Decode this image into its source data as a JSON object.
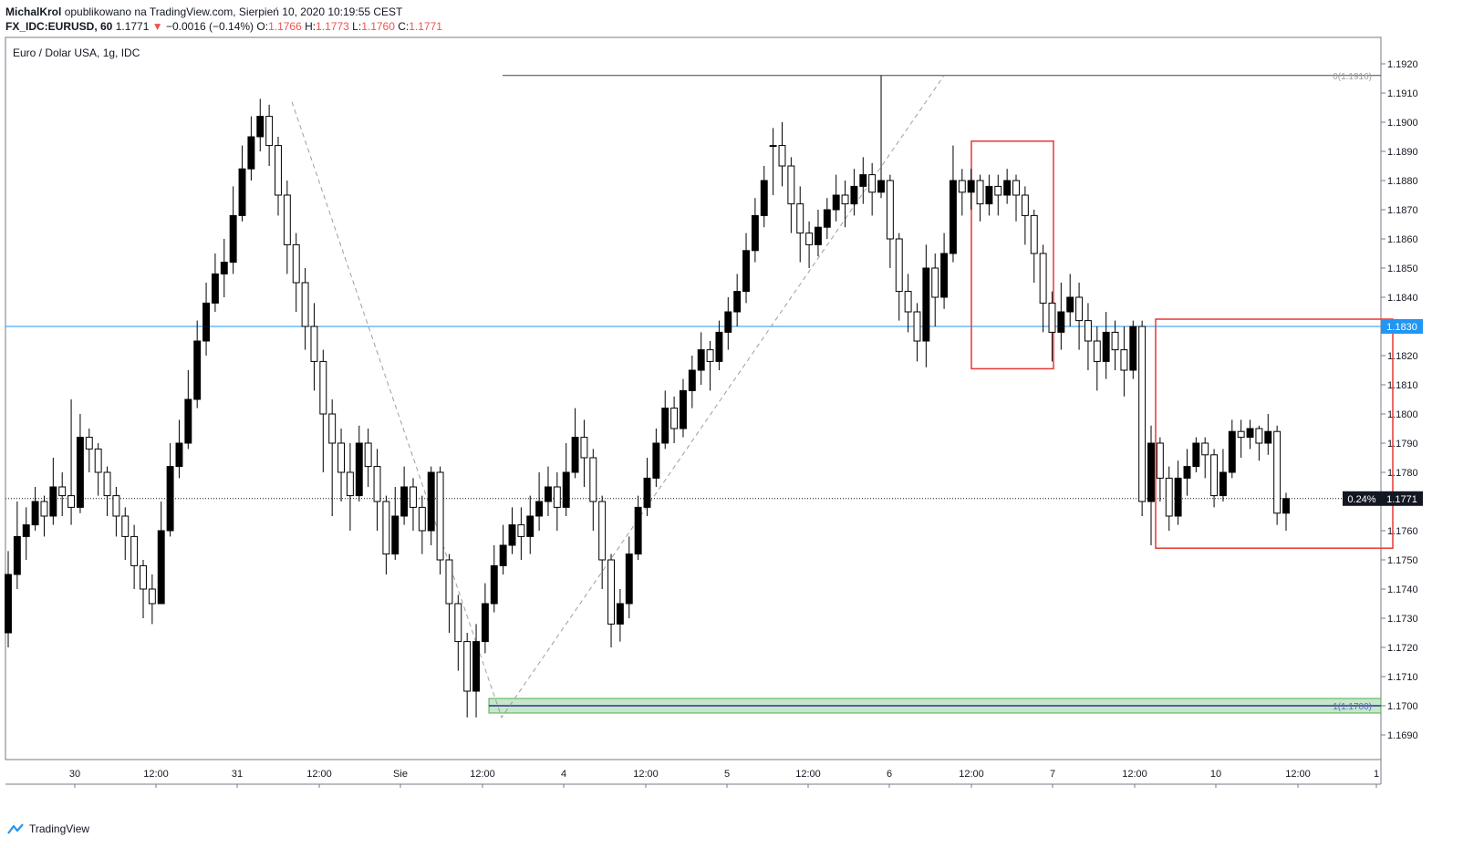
{
  "header": {
    "author": "MichalKrol",
    "published": "opublikowano na TradingView.com, Sierpień 10, 2020 10:19:55 CEST",
    "symbol": "FX_IDC:EURUSD, 60",
    "last": "1.1771",
    "change": "−0.0016 (−0.14%)",
    "o_label": "O:",
    "o_value": "1.1766",
    "h_label": "H:",
    "h_value": "1.1773",
    "l_label": "L:",
    "l_value": "1.1760",
    "c_label": "C:",
    "c_value": "1.1771"
  },
  "footer": {
    "brand": "TradingView"
  },
  "colors": {
    "up": "#ffffff",
    "down": "#000000",
    "hline": "#2196f3",
    "box": "#e53935",
    "zone": "#4caf50"
  },
  "chart_data": {
    "type": "candlestick",
    "title": "Euro / Dolar USA, 1g, IDC",
    "ylim": [
      1.1683,
      1.1927
    ],
    "y_ticks": [
      "1.1920",
      "1.1910",
      "1.1900",
      "1.1890",
      "1.1880",
      "1.1870",
      "1.1860",
      "1.1850",
      "1.1840",
      "1.1830",
      "1.1820",
      "1.1810",
      "1.1800",
      "1.1790",
      "1.1780",
      "1.1770",
      "1.1760",
      "1.1750",
      "1.1740",
      "1.1730",
      "1.1720",
      "1.1710",
      "1.1700",
      "1.1690"
    ],
    "x_ticks": [
      "30",
      "12:00",
      "31",
      "12:00",
      "Sie",
      "12:00",
      "4",
      "12:00",
      "5",
      "12:00",
      "6",
      "12:00",
      "7",
      "12:00",
      "10",
      "12:00",
      "1"
    ],
    "price_labels": {
      "horizontal_line": "1.1830",
      "current_price": "1.1771",
      "current_change": "0.24%"
    },
    "fib_labels": {
      "top": "0(1.1916)",
      "bottom": "1(1.1700)"
    },
    "anchors": [
      {
        "t": "12:00 Jul 31",
        "p": 1.1907
      },
      {
        "t": "12:00 Aug 3",
        "p": 1.1696
      },
      {
        "t": "Aug 6 ~21:00",
        "p": 1.1916
      }
    ],
    "candles": [
      [
        1.1745,
        1.1753,
        1.172,
        1.1725
      ],
      [
        1.1758,
        1.177,
        1.174,
        1.1745
      ],
      [
        1.1762,
        1.1768,
        1.175,
        1.1758
      ],
      [
        1.177,
        1.1775,
        1.176,
        1.1762
      ],
      [
        1.1765,
        1.1772,
        1.1758,
        1.177
      ],
      [
        1.1775,
        1.1785,
        1.1762,
        1.1765
      ],
      [
        1.1772,
        1.178,
        1.1765,
        1.1775
      ],
      [
        1.1768,
        1.1805,
        1.1762,
        1.1772
      ],
      [
        1.1792,
        1.18,
        1.1766,
        1.1768
      ],
      [
        1.1788,
        1.1795,
        1.178,
        1.1792
      ],
      [
        1.178,
        1.179,
        1.1772,
        1.1788
      ],
      [
        1.1772,
        1.1782,
        1.1765,
        1.178
      ],
      [
        1.1765,
        1.1775,
        1.1758,
        1.1772
      ],
      [
        1.1758,
        1.1768,
        1.175,
        1.1765
      ],
      [
        1.1748,
        1.1762,
        1.174,
        1.1758
      ],
      [
        1.174,
        1.175,
        1.173,
        1.1748
      ],
      [
        1.1735,
        1.1745,
        1.1728,
        1.174
      ],
      [
        1.176,
        1.177,
        1.1735,
        1.1735
      ],
      [
        1.1782,
        1.179,
        1.1758,
        1.176
      ],
      [
        1.179,
        1.1798,
        1.1778,
        1.1782
      ],
      [
        1.1805,
        1.1815,
        1.1788,
        1.179
      ],
      [
        1.1825,
        1.1832,
        1.1802,
        1.1805
      ],
      [
        1.1838,
        1.1845,
        1.182,
        1.1825
      ],
      [
        1.1848,
        1.1855,
        1.1835,
        1.1838
      ],
      [
        1.1852,
        1.186,
        1.184,
        1.1848
      ],
      [
        1.1868,
        1.1878,
        1.1848,
        1.1852
      ],
      [
        1.1884,
        1.1892,
        1.1866,
        1.1868
      ],
      [
        1.1895,
        1.1902,
        1.188,
        1.1884
      ],
      [
        1.1902,
        1.1908,
        1.189,
        1.1895
      ],
      [
        1.1892,
        1.1906,
        1.1885,
        1.1902
      ],
      [
        1.1875,
        1.1895,
        1.1868,
        1.1892
      ],
      [
        1.1858,
        1.188,
        1.1848,
        1.1875
      ],
      [
        1.1845,
        1.1862,
        1.1835,
        1.1858
      ],
      [
        1.183,
        1.185,
        1.1822,
        1.1845
      ],
      [
        1.1818,
        1.1838,
        1.1808,
        1.183
      ],
      [
        1.18,
        1.1822,
        1.178,
        1.1818
      ],
      [
        1.179,
        1.1805,
        1.1765,
        1.18
      ],
      [
        1.178,
        1.1795,
        1.177,
        1.179
      ],
      [
        1.1772,
        1.179,
        1.176,
        1.178
      ],
      [
        1.179,
        1.1796,
        1.177,
        1.1772
      ],
      [
        1.1782,
        1.1795,
        1.1775,
        1.179
      ],
      [
        1.177,
        1.1788,
        1.176,
        1.1782
      ],
      [
        1.1752,
        1.1772,
        1.1745,
        1.177
      ],
      [
        1.1765,
        1.1775,
        1.175,
        1.1752
      ],
      [
        1.1775,
        1.1782,
        1.1762,
        1.1765
      ],
      [
        1.1768,
        1.1778,
        1.176,
        1.1775
      ],
      [
        1.176,
        1.1772,
        1.1752,
        1.1768
      ],
      [
        1.178,
        1.1782,
        1.1755,
        1.176
      ],
      [
        1.175,
        1.1782,
        1.1745,
        1.178
      ],
      [
        1.1735,
        1.1752,
        1.1725,
        1.175
      ],
      [
        1.1722,
        1.1738,
        1.1712,
        1.1735
      ],
      [
        1.1705,
        1.1725,
        1.1696,
        1.1722
      ],
      [
        1.1722,
        1.1728,
        1.1696,
        1.1705
      ],
      [
        1.1735,
        1.1742,
        1.1718,
        1.1722
      ],
      [
        1.1748,
        1.1755,
        1.1732,
        1.1735
      ],
      [
        1.1755,
        1.1762,
        1.1745,
        1.1748
      ],
      [
        1.1762,
        1.1768,
        1.1752,
        1.1755
      ],
      [
        1.1758,
        1.1768,
        1.175,
        1.1762
      ],
      [
        1.1765,
        1.1772,
        1.1752,
        1.1758
      ],
      [
        1.177,
        1.178,
        1.176,
        1.1765
      ],
      [
        1.1775,
        1.1782,
        1.1765,
        1.177
      ],
      [
        1.1768,
        1.178,
        1.176,
        1.1775
      ],
      [
        1.178,
        1.179,
        1.1765,
        1.1768
      ],
      [
        1.1792,
        1.1802,
        1.1778,
        1.178
      ],
      [
        1.1785,
        1.1798,
        1.1775,
        1.1792
      ],
      [
        1.177,
        1.1788,
        1.176,
        1.1785
      ],
      [
        1.175,
        1.1772,
        1.174,
        1.177
      ],
      [
        1.1728,
        1.1752,
        1.172,
        1.175
      ],
      [
        1.1735,
        1.174,
        1.1722,
        1.1728
      ],
      [
        1.1752,
        1.1758,
        1.173,
        1.1735
      ],
      [
        1.1768,
        1.1772,
        1.175,
        1.1752
      ],
      [
        1.1778,
        1.1785,
        1.1765,
        1.1768
      ],
      [
        1.179,
        1.1795,
        1.1775,
        1.1778
      ],
      [
        1.1802,
        1.1808,
        1.1788,
        1.179
      ],
      [
        1.1795,
        1.1806,
        1.179,
        1.1802
      ],
      [
        1.1808,
        1.1812,
        1.1792,
        1.1795
      ],
      [
        1.1815,
        1.182,
        1.1802,
        1.1808
      ],
      [
        1.1822,
        1.1828,
        1.181,
        1.1815
      ],
      [
        1.1818,
        1.1825,
        1.1808,
        1.1822
      ],
      [
        1.1828,
        1.1832,
        1.1815,
        1.1818
      ],
      [
        1.1835,
        1.184,
        1.1822,
        1.1828
      ],
      [
        1.1842,
        1.1848,
        1.183,
        1.1835
      ],
      [
        1.1856,
        1.1862,
        1.1838,
        1.1842
      ],
      [
        1.1868,
        1.1874,
        1.1852,
        1.1856
      ],
      [
        1.188,
        1.1885,
        1.1864,
        1.1868
      ],
      [
        1.1892,
        1.1898,
        1.1875,
        1.1892
      ],
      [
        1.1885,
        1.19,
        1.1878,
        1.1892
      ],
      [
        1.1872,
        1.1888,
        1.1862,
        1.1885
      ],
      [
        1.1862,
        1.1878,
        1.1852,
        1.1872
      ],
      [
        1.1858,
        1.1866,
        1.185,
        1.1862
      ],
      [
        1.1864,
        1.187,
        1.1854,
        1.1858
      ],
      [
        1.187,
        1.1874,
        1.186,
        1.1864
      ],
      [
        1.1875,
        1.1882,
        1.1866,
        1.187
      ],
      [
        1.1872,
        1.188,
        1.1864,
        1.1875
      ],
      [
        1.1878,
        1.1884,
        1.1868,
        1.1872
      ],
      [
        1.1882,
        1.1888,
        1.1872,
        1.1878
      ],
      [
        1.1876,
        1.1886,
        1.1868,
        1.1882
      ],
      [
        1.188,
        1.1916,
        1.1874,
        1.1876
      ],
      [
        1.186,
        1.1882,
        1.185,
        1.188
      ],
      [
        1.1842,
        1.1862,
        1.1832,
        1.186
      ],
      [
        1.1835,
        1.1848,
        1.1828,
        1.1842
      ],
      [
        1.1825,
        1.1838,
        1.1818,
        1.1835
      ],
      [
        1.185,
        1.1858,
        1.1816,
        1.1825
      ],
      [
        1.184,
        1.1855,
        1.183,
        1.185
      ],
      [
        1.1855,
        1.1862,
        1.1836,
        1.184
      ],
      [
        1.188,
        1.1892,
        1.1852,
        1.1855
      ],
      [
        1.1876,
        1.1884,
        1.1868,
        1.188
      ],
      [
        1.188,
        1.1884,
        1.187,
        1.1876
      ],
      [
        1.1872,
        1.1882,
        1.1866,
        1.188
      ],
      [
        1.1878,
        1.1882,
        1.1868,
        1.1872
      ],
      [
        1.1875,
        1.1882,
        1.1868,
        1.1878
      ],
      [
        1.188,
        1.1884,
        1.1872,
        1.1875
      ],
      [
        1.1875,
        1.1882,
        1.1866,
        1.188
      ],
      [
        1.1868,
        1.1878,
        1.1858,
        1.1875
      ],
      [
        1.1855,
        1.187,
        1.1845,
        1.1868
      ],
      [
        1.1838,
        1.1858,
        1.1828,
        1.1855
      ],
      [
        1.1828,
        1.1842,
        1.1818,
        1.1838
      ],
      [
        1.1835,
        1.1845,
        1.1822,
        1.1828
      ],
      [
        1.184,
        1.1848,
        1.183,
        1.1835
      ],
      [
        1.1832,
        1.1845,
        1.1822,
        1.184
      ],
      [
        1.1825,
        1.1838,
        1.1815,
        1.1832
      ],
      [
        1.1818,
        1.183,
        1.1808,
        1.1825
      ],
      [
        1.1828,
        1.1835,
        1.1812,
        1.1818
      ],
      [
        1.1822,
        1.1832,
        1.1815,
        1.1828
      ],
      [
        1.1815,
        1.183,
        1.1806,
        1.1822
      ],
      [
        1.183,
        1.1832,
        1.1812,
        1.1815
      ],
      [
        1.177,
        1.1832,
        1.1765,
        1.183
      ],
      [
        1.179,
        1.1796,
        1.1755,
        1.177
      ],
      [
        1.1778,
        1.1792,
        1.177,
        1.179
      ],
      [
        1.1765,
        1.1782,
        1.176,
        1.1778
      ],
      [
        1.1778,
        1.1784,
        1.1762,
        1.1765
      ],
      [
        1.1782,
        1.1788,
        1.1772,
        1.1778
      ],
      [
        1.179,
        1.1792,
        1.178,
        1.1782
      ],
      [
        1.1786,
        1.1792,
        1.1778,
        1.179
      ],
      [
        1.1772,
        1.1788,
        1.1768,
        1.1786
      ],
      [
        1.178,
        1.1788,
        1.177,
        1.1772
      ],
      [
        1.1794,
        1.1798,
        1.1778,
        1.178
      ],
      [
        1.1792,
        1.1798,
        1.1785,
        1.1794
      ],
      [
        1.1795,
        1.1798,
        1.1788,
        1.1792
      ],
      [
        1.179,
        1.1796,
        1.1784,
        1.1795
      ],
      [
        1.1794,
        1.18,
        1.1786,
        1.179
      ],
      [
        1.1766,
        1.1796,
        1.1762,
        1.1794
      ],
      [
        1.1771,
        1.1773,
        1.176,
        1.1766
      ]
    ]
  }
}
